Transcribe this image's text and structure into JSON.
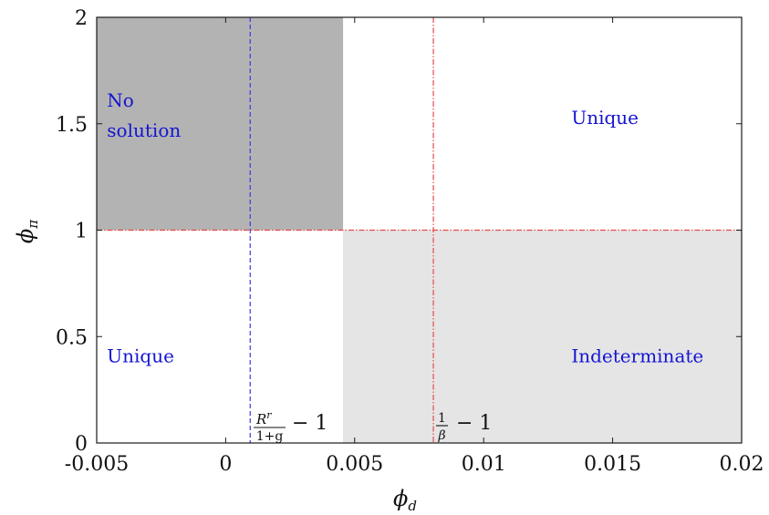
{
  "chart_data": {
    "type": "region",
    "xlabel": "ϕ",
    "xlabel_sub": "d",
    "ylabel": "ϕ",
    "ylabel_sub": "π",
    "xlim": [
      -0.005,
      0.02
    ],
    "ylim": [
      0,
      2
    ],
    "xticks": [
      {
        "value": -0.005,
        "label": "-0.005"
      },
      {
        "value": 0,
        "label": "0"
      },
      {
        "value": 0.005,
        "label": "0.005"
      },
      {
        "value": 0.01,
        "label": "0.01"
      },
      {
        "value": 0.015,
        "label": "0.015"
      },
      {
        "value": 0.02,
        "label": "0.02"
      }
    ],
    "yticks": [
      {
        "value": 0,
        "label": "0"
      },
      {
        "value": 0.5,
        "label": "0.5"
      },
      {
        "value": 1,
        "label": "1"
      },
      {
        "value": 1.5,
        "label": "1.5"
      },
      {
        "value": 2,
        "label": "2"
      }
    ],
    "regions": [
      {
        "id": "no-solution",
        "x": [
          -0.005,
          0.00455
        ],
        "y": [
          1,
          2
        ],
        "color": "#b3b3b3"
      },
      {
        "id": "indeterminate",
        "x": [
          0.00455,
          0.02
        ],
        "y": [
          0,
          1
        ],
        "color": "#e5e5e5"
      }
    ],
    "region_labels": [
      {
        "id": "no-solution",
        "lines": [
          "No",
          "solution"
        ],
        "x": -0.0046,
        "y": 1.58
      },
      {
        "id": "unique-top",
        "lines": [
          "Unique"
        ],
        "x": 0.0134,
        "y": 1.5
      },
      {
        "id": "unique-bottom",
        "lines": [
          "Unique"
        ],
        "x": -0.0046,
        "y": 0.38
      },
      {
        "id": "indeterminate",
        "lines": [
          "Indeterminate"
        ],
        "x": 0.0134,
        "y": 0.38
      }
    ],
    "reference_lines": [
      {
        "orientation": "vertical",
        "value": 0.00095,
        "color": "#3a3ae6",
        "style": "dashed"
      },
      {
        "orientation": "vertical",
        "value": 0.00805,
        "color": "#e64a4a",
        "style": "dashdot"
      },
      {
        "orientation": "horizontal",
        "value": 1,
        "color": "#e64a4a",
        "style": "dashdot"
      }
    ],
    "annotations": {
      "rr": {
        "numerator": "R",
        "numerator_sup": "r",
        "denominator": "1+g",
        "suffix": "− 1"
      },
      "beta": {
        "numerator": "1",
        "denominator": "β",
        "suffix": "− 1"
      }
    },
    "grid": false,
    "legend": false
  }
}
